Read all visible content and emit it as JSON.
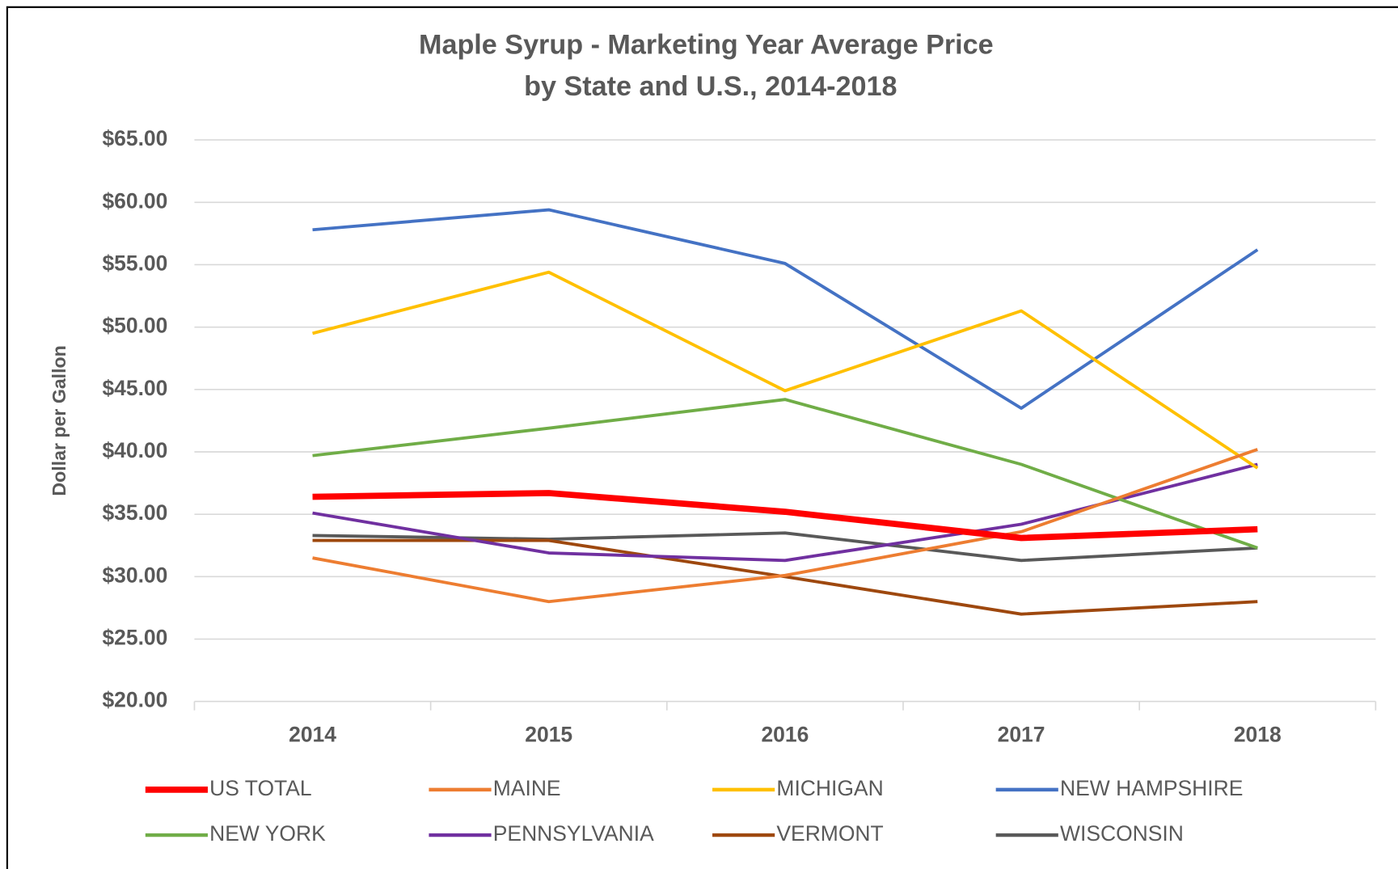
{
  "chart_data": {
    "type": "line",
    "title": "Maple Syrup - Marketing Year Average Price",
    "subtitle": "by State and U.S., 2014-2018",
    "y_label": "Dollar per Gallon",
    "categories": [
      "2014",
      "2015",
      "2016",
      "2017",
      "2018"
    ],
    "series": [
      {
        "name": "US TOTAL",
        "color": "#ff0000",
        "values": [
          36.4,
          36.7,
          35.2,
          33.1,
          33.8
        ]
      },
      {
        "name": "MAINE",
        "color": "#ed7d31",
        "values": [
          31.5,
          28.0,
          30.1,
          33.6,
          40.2
        ]
      },
      {
        "name": "MICHIGAN",
        "color": "#ffc000",
        "values": [
          49.5,
          54.4,
          44.9,
          51.3,
          38.7
        ]
      },
      {
        "name": "NEW HAMPSHIRE",
        "color": "#4472c4",
        "values": [
          57.8,
          59.4,
          55.1,
          43.5,
          56.2
        ]
      },
      {
        "name": "NEW YORK",
        "color": "#70ad47",
        "values": [
          39.7,
          41.9,
          44.2,
          39.0,
          32.3
        ]
      },
      {
        "name": "PENNSYLVANIA",
        "color": "#7030a0",
        "values": [
          35.1,
          31.9,
          31.3,
          34.2,
          39.0
        ]
      },
      {
        "name": "VERMONT",
        "color": "#9e480e",
        "values": [
          32.9,
          32.9,
          30.0,
          27.0,
          28.0
        ]
      },
      {
        "name": "WISCONSIN",
        "color": "#595959",
        "values": [
          33.3,
          33.0,
          33.5,
          31.3,
          32.3
        ]
      }
    ],
    "ylim": [
      20,
      65
    ],
    "yticks": [
      {
        "value": 20,
        "label": "$20.00"
      },
      {
        "value": 25,
        "label": "$25.00"
      },
      {
        "value": 30,
        "label": "$30.00"
      },
      {
        "value": 35,
        "label": "$35.00"
      },
      {
        "value": 40,
        "label": "$40.00"
      },
      {
        "value": 45,
        "label": "$45.00"
      },
      {
        "value": 50,
        "label": "$50.00"
      },
      {
        "value": 55,
        "label": "$55.00"
      },
      {
        "value": 60,
        "label": "$60.00"
      },
      {
        "value": 65,
        "label": "$65.00"
      }
    ],
    "grid": true,
    "legend": "bottom"
  }
}
